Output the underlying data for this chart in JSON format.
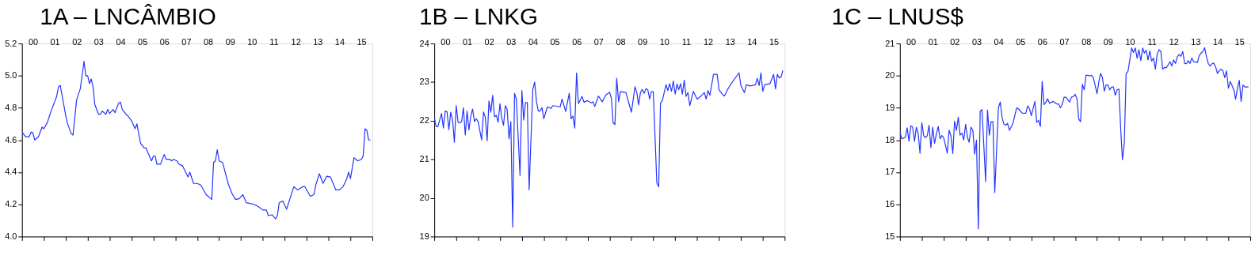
{
  "chart_data": [
    {
      "type": "line",
      "title": "1A – LNCÂMBIO",
      "color": "#2233ff",
      "grid": false,
      "x": [
        "2000-01",
        "2000-03",
        "2000-05",
        "2000-06",
        "2000-07",
        "2000-08",
        "2000-10",
        "2000-12",
        "2001-01",
        "2001-03",
        "2001-05",
        "2001-08",
        "2001-09",
        "2001-10",
        "2002-01",
        "2002-02",
        "2002-04",
        "2002-05",
        "2002-07",
        "2002-09",
        "2002-11",
        "2002-12",
        "2003-01",
        "2003-02",
        "2003-03",
        "2003-04",
        "2003-05",
        "2003-07",
        "2003-08",
        "2003-09",
        "2003-11",
        "2003-12",
        "2004-01",
        "2004-03",
        "2004-04",
        "2004-06",
        "2004-07",
        "2004-08",
        "2004-10",
        "2004-11",
        "2005-01",
        "2005-03",
        "2005-04",
        "2005-06",
        "2005-08",
        "2005-09",
        "2005-12",
        "2006-01",
        "2006-02",
        "2006-03",
        "2006-05",
        "2006-07",
        "2006-08",
        "2006-10",
        "2006-11",
        "2006-12",
        "2007-02",
        "2007-03",
        "2007-05",
        "2007-08",
        "2007-09",
        "2007-11",
        "2008-01",
        "2008-03",
        "2008-06",
        "2008-09",
        "2008-10",
        "2008-11",
        "2008-12",
        "2009-01",
        "2009-03",
        "2009-06",
        "2009-08",
        "2009-10",
        "2009-12",
        "2010-02",
        "2010-04",
        "2010-08",
        "2010-10",
        "2011-01",
        "2011-03",
        "2011-04",
        "2011-06",
        "2011-08",
        "2011-09",
        "2011-10",
        "2011-12",
        "2012-02",
        "2012-04",
        "2012-06",
        "2012-08",
        "2012-11",
        "2012-12",
        "2013-03",
        "2013-05",
        "2013-06",
        "2013-08",
        "2013-10",
        "2013-12",
        "2014-02",
        "2014-05",
        "2014-07",
        "2014-09",
        "2014-11",
        "2014-12",
        "2015-01",
        "2015-03",
        "2015-05",
        "2015-07",
        "2015-08",
        "2015-09",
        "2015-10",
        "2015-11",
        "2015-12"
      ],
      "values": [
        4.65,
        4.62,
        4.62,
        4.65,
        4.645,
        4.6,
        4.62,
        4.68,
        4.67,
        4.71,
        4.78,
        4.87,
        4.93,
        4.94,
        4.75,
        4.7,
        4.64,
        4.63,
        4.85,
        4.92,
        5.09,
        5.0,
        5.0,
        4.95,
        4.98,
        4.93,
        4.82,
        4.76,
        4.76,
        4.78,
        4.76,
        4.79,
        4.765,
        4.79,
        4.77,
        4.83,
        4.835,
        4.79,
        4.76,
        4.75,
        4.72,
        4.67,
        4.7,
        4.58,
        4.55,
        4.55,
        4.47,
        4.5,
        4.5,
        4.45,
        4.45,
        4.51,
        4.48,
        4.48,
        4.47,
        4.48,
        4.47,
        4.45,
        4.44,
        4.37,
        4.4,
        4.33,
        4.33,
        4.32,
        4.26,
        4.23,
        4.46,
        4.47,
        4.54,
        4.47,
        4.46,
        4.33,
        4.27,
        4.23,
        4.235,
        4.26,
        4.21,
        4.2,
        4.19,
        4.165,
        4.165,
        4.13,
        4.135,
        4.11,
        4.13,
        4.21,
        4.22,
        4.17,
        4.24,
        4.31,
        4.29,
        4.31,
        4.31,
        4.25,
        4.26,
        4.32,
        4.39,
        4.33,
        4.375,
        4.37,
        4.29,
        4.29,
        4.31,
        4.36,
        4.4,
        4.36,
        4.49,
        4.47,
        4.48,
        4.5,
        4.67,
        4.66,
        4.6,
        4.6
      ],
      "xlim": [
        "2000-01",
        "2016-01"
      ],
      "xticks": [
        {
          "value": "2000-01",
          "label": null
        },
        {
          "value": "2001-01",
          "label": null
        },
        {
          "value": "2002-01",
          "label": null
        },
        {
          "value": "2003-01",
          "label": null
        },
        {
          "value": "2004-01",
          "label": null
        },
        {
          "value": "2005-01",
          "label": null
        },
        {
          "value": "2006-01",
          "label": null
        },
        {
          "value": "2007-01",
          "label": null
        },
        {
          "value": "2008-01",
          "label": null
        },
        {
          "value": "2009-01",
          "label": null
        },
        {
          "value": "2010-01",
          "label": null
        },
        {
          "value": "2011-01",
          "label": null
        },
        {
          "value": "2012-01",
          "label": null
        },
        {
          "value": "2013-01",
          "label": null
        },
        {
          "value": "2014-01",
          "label": null
        },
        {
          "value": "2015-01",
          "label": null
        },
        {
          "value": "2016-01",
          "label": null
        },
        {
          "value": "2000-07",
          "label": "00"
        },
        {
          "value": "2001-07",
          "label": "01"
        },
        {
          "value": "2002-07",
          "label": "02"
        },
        {
          "value": "2003-07",
          "label": "03"
        },
        {
          "value": "2004-07",
          "label": "04"
        },
        {
          "value": "2005-07",
          "label": "05"
        },
        {
          "value": "2006-07",
          "label": "06"
        },
        {
          "value": "2007-07",
          "label": "07"
        },
        {
          "value": "2008-07",
          "label": "08"
        },
        {
          "value": "2009-07",
          "label": "09"
        },
        {
          "value": "2010-07",
          "label": "10"
        },
        {
          "value": "2011-07",
          "label": "11"
        },
        {
          "value": "2012-07",
          "label": "12"
        },
        {
          "value": "2013-07",
          "label": "13"
        },
        {
          "value": "2014-07",
          "label": "14"
        },
        {
          "value": "2015-07",
          "label": "15"
        }
      ],
      "ylim": [
        4.0,
        5.2
      ],
      "yticks": [
        {
          "value": 4.0,
          "label": "4.0"
        },
        4.2,
        4.4,
        4.6,
        4.8,
        {
          "value": 5.0,
          "label": "5.0"
        },
        5.2
      ]
    },
    {
      "type": "line",
      "title": "1B – LNKG",
      "color": "#2233ff",
      "grid": false,
      "x": [
        "2000-01",
        "2000-02",
        "2000-03",
        "2000-05",
        "2000-06",
        "2000-07",
        "2000-08",
        "2000-09",
        "2000-10",
        "2000-11",
        "2000-12",
        "2001-01",
        "2001-02",
        "2001-03",
        "2001-04",
        "2001-05",
        "2001-06",
        "2001-07",
        "2001-08",
        "2001-09",
        "2001-10",
        "2001-11",
        "2001-12",
        "2002-01",
        "2002-03",
        "2002-04",
        "2002-05",
        "2002-06",
        "2002-07",
        "2002-08",
        "2002-09",
        "2002-10",
        "2002-11",
        "2002-12",
        "2003-01",
        "2003-02",
        "2003-03",
        "2003-04",
        "2003-05",
        "2003-06",
        "2003-07",
        "2003-08",
        "2003-09",
        "2003-10",
        "2003-12",
        "2004-01",
        "2004-02",
        "2004-03",
        "2004-04",
        "2004-05",
        "2004-07",
        "2004-08",
        "2004-09",
        "2004-10",
        "2004-11",
        "2004-12",
        "2005-01",
        "2005-03",
        "2005-05",
        "2005-06",
        "2005-10",
        "2005-11",
        "2006-01",
        "2006-03",
        "2006-04",
        "2006-05",
        "2006-06",
        "2006-07",
        "2006-08",
        "2006-10",
        "2006-11",
        "2007-01",
        "2007-03",
        "2007-04",
        "2007-05",
        "2007-07",
        "2007-09",
        "2007-11",
        "2008-01",
        "2008-02",
        "2008-03",
        "2008-04",
        "2008-05",
        "2008-06",
        "2008-07",
        "2008-10",
        "2008-12",
        "2009-01",
        "2009-03",
        "2009-04",
        "2009-05",
        "2009-06",
        "2009-07",
        "2009-08",
        "2009-09",
        "2009-10",
        "2009-11",
        "2009-12",
        "2010-01",
        "2010-03",
        "2010-04",
        "2010-05",
        "2010-06",
        "2010-08",
        "2010-09",
        "2010-10",
        "2010-11",
        "2010-12",
        "2011-01",
        "2011-02",
        "2011-03",
        "2011-04",
        "2011-05",
        "2011-06",
        "2011-07",
        "2011-08",
        "2011-09",
        "2011-11",
        "2012-01",
        "2012-03",
        "2012-05",
        "2012-06",
        "2012-07",
        "2012-08",
        "2012-10",
        "2012-12",
        "2013-01",
        "2013-03",
        "2013-04",
        "2013-06",
        "2013-08",
        "2013-12",
        "2014-01",
        "2014-03",
        "2014-04",
        "2014-06",
        "2014-09",
        "2014-10",
        "2014-11",
        "2014-12",
        "2015-01",
        "2015-02",
        "2015-05",
        "2015-07",
        "2015-08",
        "2015-09",
        "2015-10",
        "2015-11",
        "2015-12"
      ],
      "values": [
        22.07,
        21.85,
        21.85,
        22.19,
        21.81,
        22.25,
        22.23,
        21.77,
        22.22,
        22.03,
        21.44,
        22.39,
        21.96,
        21.94,
        21.98,
        22.34,
        21.63,
        22.25,
        21.76,
        22.12,
        22.3,
        21.98,
        22.05,
        21.98,
        21.5,
        22.23,
        22.09,
        21.48,
        22.51,
        22.22,
        22.66,
        22.1,
        22.14,
        21.96,
        22.44,
        22.05,
        21.88,
        22.39,
        22.29,
        21.53,
        21.98,
        19.24,
        22.71,
        22.56,
        20.58,
        22.78,
        22.02,
        22.47,
        22.47,
        20.21,
        22.8,
        23.0,
        22.49,
        22.25,
        22.25,
        22.34,
        22.05,
        22.36,
        22.32,
        22.39,
        22.36,
        22.56,
        22.24,
        22.71,
        22.05,
        22.12,
        21.81,
        23.24,
        22.44,
        22.63,
        22.48,
        22.52,
        22.46,
        22.49,
        22.37,
        22.64,
        22.49,
        22.66,
        22.74,
        22.59,
        21.95,
        21.9,
        23.1,
        22.49,
        22.75,
        22.73,
        22.39,
        22.22,
        22.88,
        22.73,
        22.41,
        22.73,
        22.81,
        22.71,
        22.83,
        22.8,
        22.56,
        22.75,
        22.75,
        20.39,
        20.29,
        22.46,
        22.52,
        22.93,
        22.78,
        22.96,
        22.76,
        23.03,
        22.69,
        22.95,
        22.8,
        22.96,
        22.69,
        23.05,
        22.63,
        22.73,
        22.39,
        22.76,
        22.56,
        22.63,
        22.73,
        22.56,
        22.78,
        22.66,
        23.2,
        23.2,
        22.8,
        22.68,
        22.64,
        22.83,
        22.98,
        23.24,
        22.91,
        22.73,
        22.93,
        22.9,
        22.93,
        23.1,
        22.91,
        23.24,
        22.76,
        22.93,
        22.96,
        23.2,
        22.82,
        23.2,
        23.11,
        23.13,
        23.3
      ],
      "xlim": [
        "2000-01",
        "2016-01"
      ],
      "xticks": [
        {
          "value": "2000-01",
          "label": null
        },
        {
          "value": "2001-01",
          "label": null
        },
        {
          "value": "2002-01",
          "label": null
        },
        {
          "value": "2003-01",
          "label": null
        },
        {
          "value": "2004-01",
          "label": null
        },
        {
          "value": "2005-01",
          "label": null
        },
        {
          "value": "2006-01",
          "label": null
        },
        {
          "value": "2007-01",
          "label": null
        },
        {
          "value": "2008-01",
          "label": null
        },
        {
          "value": "2009-01",
          "label": null
        },
        {
          "value": "2010-01",
          "label": null
        },
        {
          "value": "2011-01",
          "label": null
        },
        {
          "value": "2012-01",
          "label": null
        },
        {
          "value": "2013-01",
          "label": null
        },
        {
          "value": "2014-01",
          "label": null
        },
        {
          "value": "2015-01",
          "label": null
        },
        {
          "value": "2016-01",
          "label": null
        },
        {
          "value": "2000-07",
          "label": "00"
        },
        {
          "value": "2001-07",
          "label": "01"
        },
        {
          "value": "2002-07",
          "label": "02"
        },
        {
          "value": "2003-07",
          "label": "03"
        },
        {
          "value": "2004-07",
          "label": "04"
        },
        {
          "value": "2005-07",
          "label": "05"
        },
        {
          "value": "2006-07",
          "label": "06"
        },
        {
          "value": "2007-07",
          "label": "07"
        },
        {
          "value": "2008-07",
          "label": "08"
        },
        {
          "value": "2009-07",
          "label": "09"
        },
        {
          "value": "2010-07",
          "label": "10"
        },
        {
          "value": "2011-07",
          "label": "11"
        },
        {
          "value": "2012-07",
          "label": "12"
        },
        {
          "value": "2013-07",
          "label": "13"
        },
        {
          "value": "2014-07",
          "label": "14"
        },
        {
          "value": "2015-07",
          "label": "15"
        }
      ],
      "ylim": [
        19,
        24
      ],
      "yticks": [
        19,
        20,
        21,
        22,
        23,
        24
      ]
    },
    {
      "type": "line",
      "title": "1C – LNUS$",
      "color": "#2233ff",
      "grid": false,
      "x": [
        "2000-01",
        "2000-02",
        "2000-04",
        "2000-05",
        "2000-06",
        "2000-07",
        "2000-08",
        "2000-09",
        "2000-10",
        "2000-11",
        "2000-12",
        "2001-01",
        "2001-02",
        "2001-03",
        "2001-04",
        "2001-05",
        "2001-06",
        "2001-07",
        "2001-08",
        "2001-09",
        "2001-10",
        "2001-11",
        "2001-12",
        "2002-01",
        "2002-03",
        "2002-04",
        "2002-05",
        "2002-06",
        "2002-07",
        "2002-08",
        "2002-09",
        "2002-10",
        "2002-11",
        "2002-12",
        "2003-01",
        "2003-02",
        "2003-03",
        "2003-04",
        "2003-05",
        "2003-06",
        "2003-07",
        "2003-08",
        "2003-09",
        "2003-10",
        "2003-12",
        "2004-01",
        "2004-02",
        "2004-03",
        "2004-04",
        "2004-05",
        "2004-07",
        "2004-08",
        "2004-09",
        "2004-10",
        "2004-11",
        "2004-12",
        "2005-01",
        "2005-03",
        "2005-05",
        "2005-06",
        "2005-08",
        "2005-10",
        "2005-11",
        "2005-12",
        "2006-01",
        "2006-03",
        "2006-04",
        "2006-05",
        "2006-06",
        "2006-07",
        "2006-08",
        "2006-09",
        "2006-10",
        "2006-11",
        "2007-01",
        "2007-03",
        "2007-04",
        "2007-05",
        "2007-06",
        "2007-07",
        "2007-08",
        "2007-10",
        "2007-11",
        "2007-12",
        "2008-01",
        "2008-02",
        "2008-03",
        "2008-04",
        "2008-05",
        "2008-06",
        "2008-07",
        "2008-08",
        "2008-09",
        "2008-10",
        "2008-11",
        "2008-12",
        "2009-01",
        "2009-02",
        "2009-03",
        "2009-04",
        "2009-05",
        "2009-06",
        "2009-07",
        "2009-08",
        "2009-09",
        "2009-10",
        "2009-11",
        "2009-12",
        "2010-01",
        "2010-02",
        "2010-03",
        "2010-04",
        "2010-05",
        "2010-06",
        "2010-08",
        "2010-09",
        "2010-10",
        "2010-11",
        "2010-12",
        "2011-01",
        "2011-02",
        "2011-03",
        "2011-04",
        "2011-05",
        "2011-06",
        "2011-07",
        "2011-08",
        "2011-09",
        "2011-10",
        "2011-11",
        "2011-12",
        "2012-01",
        "2012-02",
        "2012-03",
        "2012-05",
        "2012-06",
        "2012-07",
        "2012-08",
        "2012-09",
        "2012-10",
        "2012-11",
        "2012-12",
        "2013-01",
        "2013-02",
        "2013-03",
        "2013-04",
        "2013-05",
        "2013-06",
        "2013-07",
        "2013-08",
        "2013-09",
        "2013-10",
        "2013-11",
        "2013-12",
        "2014-01",
        "2014-02",
        "2014-03",
        "2014-04",
        "2014-05",
        "2014-06",
        "2014-07",
        "2014-08",
        "2014-09",
        "2014-10",
        "2014-11",
        "2014-12",
        "2015-01",
        "2015-02",
        "2015-04",
        "2015-05",
        "2015-06",
        "2015-07",
        "2015-08",
        "2015-09",
        "2015-10",
        "2015-12"
      ],
      "values": [
        18.25,
        18.04,
        18.08,
        18.38,
        17.96,
        18.44,
        18.4,
        17.96,
        18.4,
        18.21,
        17.59,
        18.54,
        18.13,
        18.08,
        18.13,
        18.46,
        17.76,
        18.4,
        17.9,
        18.19,
        18.42,
        18.04,
        18.14,
        18.07,
        17.59,
        18.3,
        18.13,
        17.58,
        18.59,
        18.3,
        18.71,
        18.15,
        18.21,
        18.0,
        18.49,
        18.08,
        17.93,
        18.4,
        18.3,
        17.56,
        18.0,
        15.24,
        18.89,
        18.95,
        16.71,
        18.93,
        18.15,
        18.57,
        18.57,
        16.37,
        19.0,
        19.18,
        18.69,
        18.49,
        18.46,
        18.52,
        18.3,
        18.52,
        19.0,
        18.97,
        18.84,
        18.83,
        19.06,
        18.97,
        18.76,
        19.2,
        18.55,
        18.61,
        18.42,
        19.82,
        19.1,
        19.17,
        19.28,
        19.14,
        19.2,
        19.12,
        19.12,
        19.0,
        19.11,
        19.33,
        19.33,
        19.18,
        19.33,
        19.35,
        19.42,
        19.28,
        18.66,
        18.57,
        19.73,
        19.56,
        20.01,
        20.01,
        19.99,
        20.01,
        19.94,
        19.69,
        19.44,
        19.82,
        20.07,
        19.94,
        19.52,
        19.71,
        19.71,
        19.56,
        19.65,
        19.65,
        19.39,
        19.56,
        19.58,
        18.3,
        17.39,
        17.91,
        20.07,
        20.13,
        20.86,
        20.72,
        20.86,
        20.54,
        20.81,
        20.47,
        20.86,
        20.7,
        20.79,
        20.49,
        20.77,
        20.45,
        20.55,
        20.2,
        20.66,
        20.81,
        20.75,
        20.2,
        20.26,
        20.24,
        20.43,
        20.3,
        20.49,
        20.38,
        20.58,
        20.66,
        20.6,
        20.75,
        20.38,
        20.37,
        20.47,
        20.38,
        20.55,
        20.43,
        20.43,
        20.41,
        20.62,
        20.7,
        20.75,
        20.87,
        20.58,
        20.37,
        20.3,
        20.37,
        20.39,
        20.28,
        20.07,
        20.15,
        20.2,
        20.15,
        19.94,
        20.15,
        19.61,
        19.82,
        19.56,
        19.27,
        19.61,
        19.86,
        19.2,
        19.71,
        19.65,
        19.65
      ],
      "xlim": [
        "2000-01",
        "2016-01"
      ],
      "xticks": [
        {
          "value": "2000-01",
          "label": null
        },
        {
          "value": "2001-01",
          "label": null
        },
        {
          "value": "2002-01",
          "label": null
        },
        {
          "value": "2003-01",
          "label": null
        },
        {
          "value": "2004-01",
          "label": null
        },
        {
          "value": "2005-01",
          "label": null
        },
        {
          "value": "2006-01",
          "label": null
        },
        {
          "value": "2007-01",
          "label": null
        },
        {
          "value": "2008-01",
          "label": null
        },
        {
          "value": "2009-01",
          "label": null
        },
        {
          "value": "2010-01",
          "label": null
        },
        {
          "value": "2011-01",
          "label": null
        },
        {
          "value": "2012-01",
          "label": null
        },
        {
          "value": "2013-01",
          "label": null
        },
        {
          "value": "2014-01",
          "label": null
        },
        {
          "value": "2015-01",
          "label": null
        },
        {
          "value": "2016-01",
          "label": null
        },
        {
          "value": "2000-07",
          "label": "00"
        },
        {
          "value": "2001-07",
          "label": "01"
        },
        {
          "value": "2002-07",
          "label": "02"
        },
        {
          "value": "2003-07",
          "label": "03"
        },
        {
          "value": "2004-07",
          "label": "04"
        },
        {
          "value": "2005-07",
          "label": "05"
        },
        {
          "value": "2006-07",
          "label": "06"
        },
        {
          "value": "2007-07",
          "label": "07"
        },
        {
          "value": "2008-07",
          "label": "08"
        },
        {
          "value": "2009-07",
          "label": "09"
        },
        {
          "value": "2010-07",
          "label": "10"
        },
        {
          "value": "2011-07",
          "label": "11"
        },
        {
          "value": "2012-07",
          "label": "12"
        },
        {
          "value": "2013-07",
          "label": "13"
        },
        {
          "value": "2014-07",
          "label": "14"
        },
        {
          "value": "2015-07",
          "label": "15"
        }
      ],
      "ylim": [
        15,
        21
      ],
      "yticks": [
        15,
        16,
        17,
        18,
        19,
        20,
        21
      ]
    }
  ]
}
